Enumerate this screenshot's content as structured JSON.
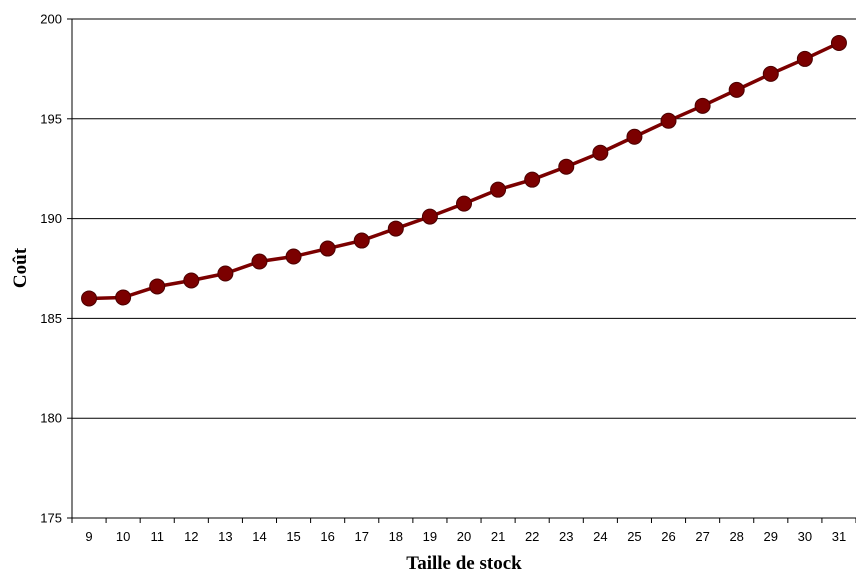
{
  "chart_data": {
    "type": "line",
    "title": "",
    "xlabel": "Taille de stock",
    "ylabel": "Coût",
    "categories": [
      "9",
      "10",
      "11",
      "12",
      "13",
      "14",
      "15",
      "16",
      "17",
      "18",
      "19",
      "20",
      "21",
      "22",
      "23",
      "24",
      "25",
      "26",
      "27",
      "28",
      "29",
      "30",
      "31"
    ],
    "series": [
      {
        "values": [
          186.0,
          186.05,
          186.6,
          186.9,
          187.25,
          187.85,
          188.1,
          188.5,
          188.9,
          189.5,
          190.1,
          190.75,
          191.45,
          191.95,
          192.6,
          193.3,
          194.1,
          194.9,
          195.65,
          196.45,
          197.25,
          198.0,
          198.8
        ]
      }
    ],
    "ylim": [
      175,
      200
    ],
    "yticks": [
      175,
      180,
      185,
      190,
      195,
      200
    ],
    "grid": "horizontal",
    "legend": "none",
    "colors": {
      "line": "#7b0000",
      "marker": "#7b0000",
      "grid": "#000000",
      "axis": "#000000"
    }
  }
}
